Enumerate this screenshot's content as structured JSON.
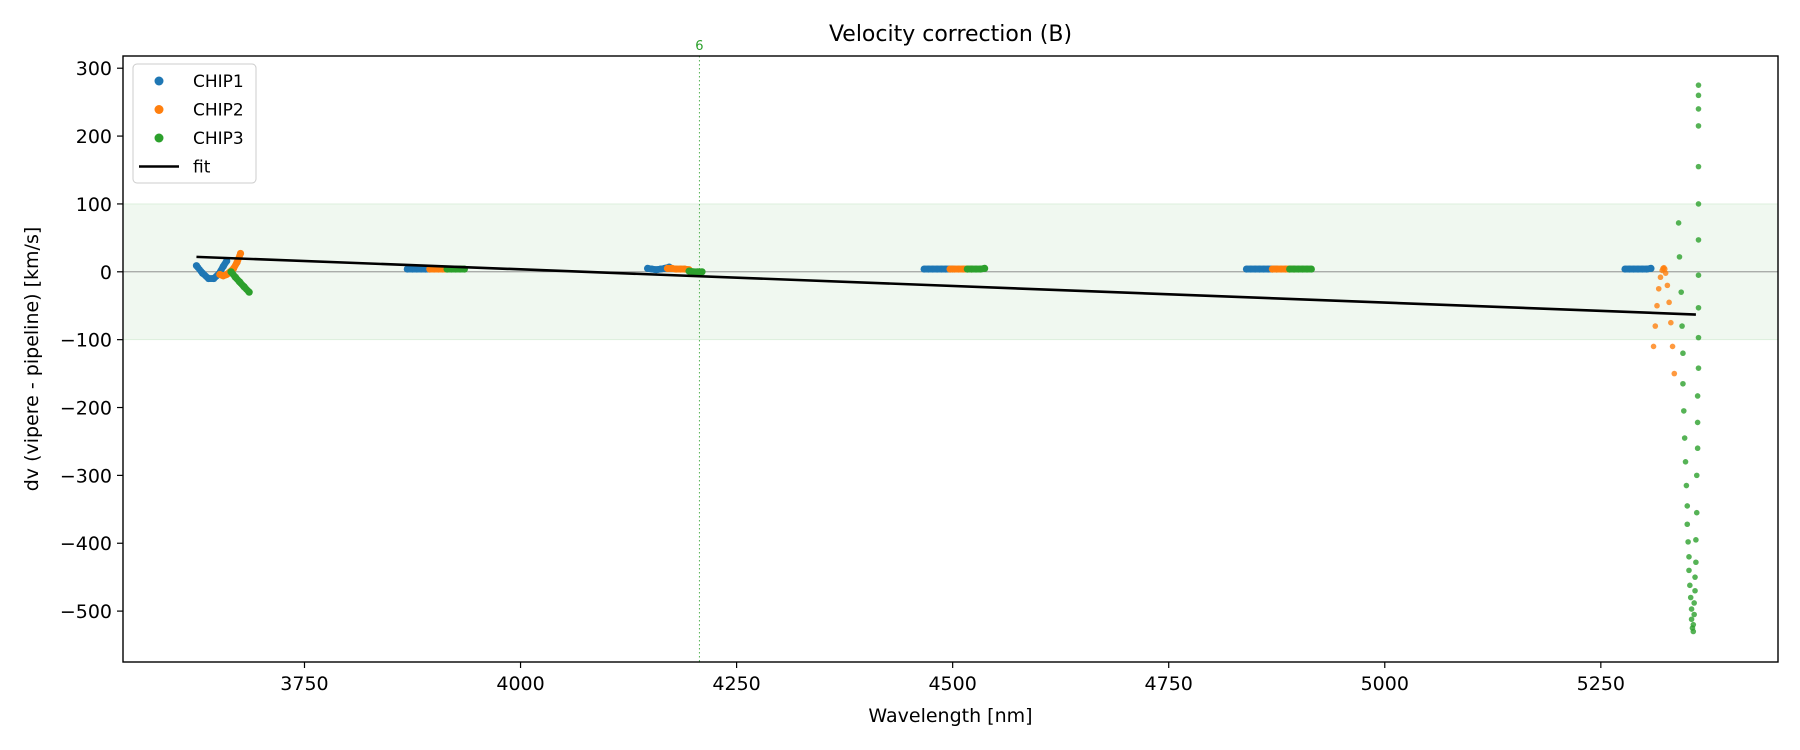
{
  "chart_data": {
    "type": "scatter",
    "title": "Velocity correction (B)",
    "xlabel": "Wavelength [nm]",
    "ylabel": "dv (vipere - pipeline) [km/s]",
    "xlim": [
      3540,
      5455
    ],
    "ylim": [
      -575,
      318
    ],
    "xticks": [
      3750,
      4000,
      4250,
      4500,
      4750,
      5000,
      5250
    ],
    "yticks": [
      300,
      200,
      100,
      0,
      -100,
      -200,
      -300,
      -400,
      -500
    ],
    "band": {
      "y0": -100,
      "y1": 100,
      "color": "#2ca02c"
    },
    "zero_line": {
      "y": 0,
      "color": "#808080"
    },
    "vline": {
      "x": 4207,
      "label": "6",
      "color": "#2ca02c"
    },
    "legend": {
      "location": "upper-left",
      "entries": [
        "CHIP1",
        "CHIP2",
        "CHIP3",
        "fit"
      ]
    },
    "fit": {
      "name": "fit",
      "color": "#000000",
      "x": [
        3625,
        5360
      ],
      "y": [
        22,
        -63
      ]
    },
    "series": [
      {
        "name": "CHIP1",
        "color": "#1f77b4",
        "segments": [
          {
            "x": [
              3625,
              3632,
              3639,
              3645,
              3651,
              3656,
              3660
            ],
            "y": [
              9,
              -2,
              -10,
              -10,
              -3,
              8,
              16
            ]
          },
          {
            "x": [
              3869,
              3875,
              3880,
              3885,
              3890,
              3895
            ],
            "y": [
              4,
              4,
              4,
              4,
              4,
              4
            ]
          },
          {
            "x": [
              4147,
              4152,
              4157,
              4162,
              4167,
              4172
            ],
            "y": [
              5,
              4,
              3,
              4,
              5,
              7
            ]
          },
          {
            "x": [
              4467,
              4472,
              4477,
              4482,
              4487,
              4492,
              4497,
              4500
            ],
            "y": [
              4,
              4,
              4,
              4,
              4,
              4,
              4,
              4
            ]
          },
          {
            "x": [
              4840,
              4845,
              4850,
              4855,
              4860,
              4865,
              4870,
              4875
            ],
            "y": [
              4,
              4,
              4,
              4,
              4,
              4,
              4,
              4
            ]
          },
          {
            "x": [
              5278,
              5283,
              5288,
              5293,
              5298,
              5303,
              5308
            ],
            "y": [
              4,
              4,
              4,
              4,
              4,
              4,
              5
            ]
          }
        ]
      },
      {
        "name": "CHIP2",
        "color": "#ff7f0e",
        "segments": [
          {
            "x": [
              3652,
              3656,
              3660,
              3664,
              3668,
              3672,
              3676
            ],
            "y": [
              -4,
              -6,
              -4,
              0,
              5,
              14,
              27
            ]
          },
          {
            "x": [
              3895,
              3900,
              3905,
              3910,
              3915
            ],
            "y": [
              4,
              4,
              4,
              4,
              4
            ]
          },
          {
            "x": [
              4170,
              4175,
              4180,
              4185,
              4190,
              4195
            ],
            "y": [
              5,
              5,
              4,
              4,
              4,
              3
            ]
          },
          {
            "x": [
              4497,
              4502,
              4507,
              4512,
              4517,
              4522
            ],
            "y": [
              4,
              4,
              4,
              4,
              4,
              4
            ]
          },
          {
            "x": [
              4870,
              4875,
              4880,
              4885,
              4890,
              4895
            ],
            "y": [
              4,
              4,
              4,
              4,
              4,
              4
            ]
          },
          {
            "x": [
              5311,
              5313,
              5315,
              5317,
              5319,
              5321,
              5322,
              5323,
              5324,
              5325,
              5327,
              5329,
              5331,
              5333,
              5335
            ],
            "y": [
              -110,
              -80,
              -50,
              -25,
              -8,
              2,
              5,
              6,
              4,
              -2,
              -20,
              -45,
              -75,
              -110,
              -150
            ]
          }
        ]
      },
      {
        "name": "CHIP3",
        "color": "#2ca02c",
        "segments": [
          {
            "x": [
              3665,
              3670,
              3675,
              3680,
              3686
            ],
            "y": [
              0,
              -8,
              -15,
              -22,
              -30
            ]
          },
          {
            "x": [
              3915,
              3920,
              3925,
              3930,
              3935
            ],
            "y": [
              4,
              4,
              4,
              4,
              4
            ]
          },
          {
            "x": [
              4195,
              4200,
              4205,
              4210
            ],
            "y": [
              1,
              0,
              0,
              0
            ]
          },
          {
            "x": [
              4517,
              4522,
              4527,
              4532,
              4537
            ],
            "y": [
              4,
              4,
              4,
              4,
              5
            ]
          },
          {
            "x": [
              4890,
              4895,
              4900,
              4905,
              4910,
              4915
            ],
            "y": [
              4,
              4,
              4,
              4,
              4,
              4
            ]
          },
          {
            "x": [
              5340,
              5341,
              5343,
              5344,
              5345,
              5345,
              5346,
              5347,
              5348,
              5349,
              5350,
              5350,
              5351,
              5352,
              5352,
              5353,
              5354,
              5355,
              5355,
              5356,
              5357,
              5357,
              5358,
              5358,
              5359,
              5359,
              5360,
              5360,
              5361,
              5361,
              5362
            ],
            "y": [
              72,
              22,
              -30,
              -80,
              -120,
              -165,
              -205,
              -245,
              -280,
              -315,
              -345,
              -372,
              -398,
              -420,
              -440,
              -462,
              -480,
              -497,
              -512,
              -525,
              -530,
              -520,
              -505,
              -488,
              -470,
              -450,
              -428,
              -395,
              -355,
              -300,
              -260
            ]
          },
          {
            "x": [
              5362,
              5362,
              5363,
              5363,
              5363,
              5363,
              5363,
              5363,
              5363,
              5363,
              5363,
              5363,
              5363
            ],
            "y": [
              -222,
              -183,
              -142,
              -97,
              -53,
              -5,
              47,
              100,
              155,
              215,
              275,
              260,
              240
            ]
          }
        ]
      }
    ]
  }
}
